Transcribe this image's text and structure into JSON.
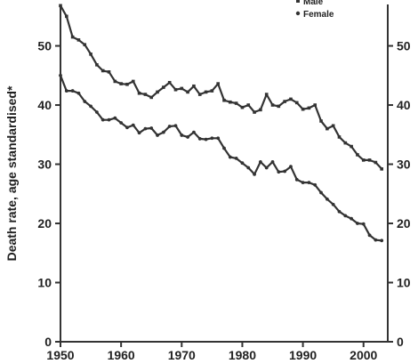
{
  "chart_data": {
    "type": "line",
    "ylabel": "Death rate, age standardised*",
    "xlabel": "",
    "xlim": [
      1950,
      2004
    ],
    "ylim": [
      0,
      57
    ],
    "x_ticks": [
      1950,
      1960,
      1970,
      1980,
      1990,
      2000
    ],
    "y_ticks": [
      0,
      10,
      20,
      30,
      40,
      50
    ],
    "legend_position": "top-right",
    "series": [
      {
        "name": "Male",
        "marker": "square",
        "color": "#333333",
        "x": [
          1950,
          1951,
          1952,
          1953,
          1954,
          1955,
          1956,
          1957,
          1958,
          1959,
          1960,
          1961,
          1962,
          1963,
          1964,
          1965,
          1966,
          1967,
          1968,
          1969,
          1970,
          1971,
          1972,
          1973,
          1974,
          1975,
          1976,
          1977,
          1978,
          1979,
          1980,
          1981,
          1982,
          1983,
          1984,
          1985,
          1986,
          1987,
          1988,
          1989,
          1990,
          1991,
          1992,
          1993,
          1994,
          1995,
          1996,
          1997,
          1998,
          1999,
          2000,
          2001,
          2002,
          2003
        ],
        "values": [
          56.8,
          55.0,
          51.5,
          51.0,
          50.2,
          48.6,
          46.8,
          45.8,
          45.6,
          44.0,
          43.6,
          43.5,
          44.0,
          42.0,
          41.8,
          41.3,
          42.2,
          43.0,
          43.8,
          42.6,
          42.8,
          42.2,
          43.2,
          41.8,
          42.2,
          42.4,
          43.6,
          40.8,
          40.5,
          40.3,
          39.6,
          40.0,
          38.8,
          39.2,
          41.8,
          40.0,
          39.8,
          40.6,
          41.0,
          40.4,
          39.3,
          39.5,
          40.0,
          37.3,
          36.0,
          36.5,
          34.6,
          33.6,
          33.0,
          31.6,
          30.7,
          30.7,
          30.3,
          29.2
        ]
      },
      {
        "name": "Female",
        "marker": "circle",
        "color": "#333333",
        "x": [
          1950,
          1951,
          1952,
          1953,
          1954,
          1955,
          1956,
          1957,
          1958,
          1959,
          1960,
          1961,
          1962,
          1963,
          1964,
          1965,
          1966,
          1967,
          1968,
          1969,
          1970,
          1971,
          1972,
          1973,
          1974,
          1975,
          1976,
          1977,
          1978,
          1979,
          1980,
          1981,
          1982,
          1983,
          1984,
          1985,
          1986,
          1987,
          1988,
          1989,
          1990,
          1991,
          1992,
          1993,
          1994,
          1995,
          1996,
          1997,
          1998,
          1999,
          2000,
          2001,
          2002,
          2003
        ],
        "values": [
          45.0,
          42.4,
          42.4,
          42.0,
          40.6,
          39.8,
          38.8,
          37.5,
          37.5,
          37.8,
          37.0,
          36.2,
          36.6,
          35.3,
          36.0,
          36.1,
          34.9,
          35.4,
          36.4,
          36.5,
          34.9,
          34.6,
          35.4,
          34.3,
          34.2,
          34.4,
          34.4,
          32.7,
          31.2,
          31.0,
          30.2,
          29.4,
          28.3,
          30.4,
          29.4,
          30.4,
          28.7,
          28.8,
          29.6,
          27.4,
          26.9,
          26.9,
          26.5,
          25.2,
          24.1,
          23.2,
          22.0,
          21.3,
          20.8,
          20.0,
          19.9,
          18.0,
          17.2,
          17.1
        ]
      }
    ]
  }
}
